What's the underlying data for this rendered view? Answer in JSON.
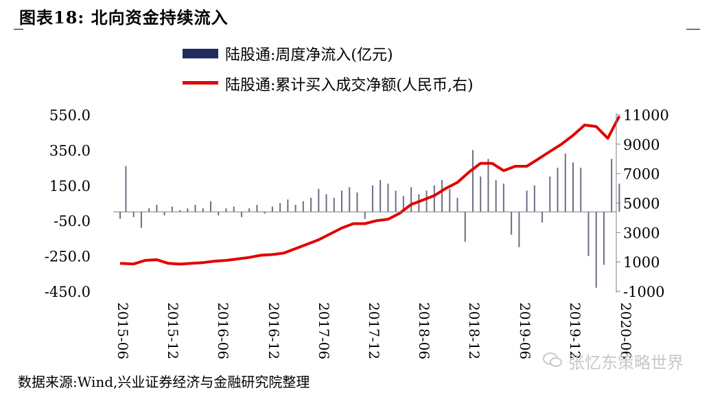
{
  "header": {
    "title": "图表18:  北向资金持续流入"
  },
  "legend": {
    "bar_label": "陆股通:周度净流入(亿元)",
    "line_label": "陆股通:累计买入成交净额(人民币,右)"
  },
  "footer": {
    "source": "数据来源:Wind,兴业证券经济与金融研究院整理",
    "watermark": "张忆东策略世界"
  },
  "colors": {
    "bar": "#6b6e84",
    "line": "#e10000",
    "legend_bar": "#1f2d5c",
    "axis": "#808080"
  },
  "icons": {
    "watermark": "wechat-icon"
  },
  "chart_data": {
    "type": "bar",
    "title": "",
    "x_tick_labels": [
      "2015-06",
      "2015-12",
      "2016-06",
      "2016-12",
      "2017-06",
      "2017-12",
      "2018-06",
      "2018-12",
      "2019-06",
      "2019-12",
      "2020-06"
    ],
    "y_left": {
      "ticks": [
        550,
        350,
        150,
        -50,
        -250,
        -450
      ],
      "tick_labels": [
        "550.0",
        "350.0",
        "150.0",
        "-50.0",
        "-250.0",
        "-450.0"
      ],
      "range": [
        -450,
        550
      ]
    },
    "y_right": {
      "ticks": [
        11000,
        9000,
        7000,
        5000,
        3000,
        1000,
        -1000
      ],
      "tick_labels": [
        "11000",
        "9000",
        "7000",
        "5000",
        "3000",
        "1000",
        "-1000"
      ],
      "range": [
        -1000,
        11000
      ]
    },
    "series": [
      {
        "name": "陆股通:周度净流入(亿元)",
        "type": "bar",
        "axis": "left",
        "x": [
          "2015-06-26",
          "2015-07-17",
          "2015-08-14",
          "2015-09-11",
          "2015-10-09",
          "2015-11-06",
          "2015-12-04",
          "2016-01-01",
          "2016-01-29",
          "2016-02-26",
          "2016-03-25",
          "2016-04-22",
          "2016-05-20",
          "2016-06-17",
          "2016-07-15",
          "2016-08-12",
          "2016-09-09",
          "2016-10-07",
          "2016-11-04",
          "2016-12-02",
          "2016-12-30",
          "2017-01-27",
          "2017-02-24",
          "2017-03-24",
          "2017-04-21",
          "2017-05-19",
          "2017-06-16",
          "2017-07-14",
          "2017-08-11",
          "2017-09-08",
          "2017-10-06",
          "2017-11-03",
          "2017-12-01",
          "2017-12-29",
          "2018-01-26",
          "2018-02-23",
          "2018-03-23",
          "2018-04-20",
          "2018-05-18",
          "2018-06-15",
          "2018-07-13",
          "2018-08-10",
          "2018-09-07",
          "2018-10-05",
          "2018-11-02",
          "2018-11-30",
          "2018-12-28",
          "2019-01-25",
          "2019-02-22",
          "2019-03-22",
          "2019-04-19",
          "2019-05-17",
          "2019-06-14",
          "2019-07-12",
          "2019-08-09",
          "2019-09-06",
          "2019-10-04",
          "2019-11-01",
          "2019-11-29",
          "2019-12-27",
          "2020-01-24",
          "2020-02-21",
          "2020-03-20",
          "2020-04-17",
          "2020-05-15",
          "2020-06-12"
        ],
        "values": [
          -40,
          260,
          -30,
          -90,
          20,
          40,
          -20,
          30,
          10,
          20,
          40,
          20,
          60,
          -20,
          20,
          30,
          -30,
          20,
          40,
          -10,
          30,
          50,
          70,
          40,
          60,
          80,
          130,
          100,
          80,
          120,
          140,
          110,
          -40,
          150,
          180,
          160,
          120,
          90,
          140,
          100,
          120,
          150,
          180,
          130,
          80,
          -170,
          350,
          200,
          300,
          180,
          160,
          -130,
          -200,
          120,
          150,
          -60,
          200,
          250,
          330,
          280,
          250,
          -250,
          -430,
          -300,
          300,
          160
        ]
      },
      {
        "name": "陆股通:累计买入成交净额(人民币,右)",
        "type": "line",
        "axis": "right",
        "x": [
          "2015-06-26",
          "2015-08-14",
          "2015-09-25",
          "2015-11-06",
          "2015-12-18",
          "2016-01-29",
          "2016-03-11",
          "2016-04-22",
          "2016-06-03",
          "2016-07-15",
          "2016-08-26",
          "2016-10-07",
          "2016-11-18",
          "2016-12-30",
          "2017-02-10",
          "2017-03-24",
          "2017-05-05",
          "2017-06-16",
          "2017-07-28",
          "2017-09-08",
          "2017-10-20",
          "2017-12-01",
          "2018-01-12",
          "2018-02-23",
          "2018-04-06",
          "2018-05-18",
          "2018-06-29",
          "2018-08-10",
          "2018-09-21",
          "2018-11-02",
          "2018-12-14",
          "2019-01-25",
          "2019-03-08",
          "2019-04-19",
          "2019-05-31",
          "2019-07-12",
          "2019-08-23",
          "2019-10-04",
          "2019-11-15",
          "2019-12-27",
          "2020-02-07",
          "2020-03-20",
          "2020-05-01",
          "2020-06-12"
        ],
        "values": [
          900,
          860,
          1100,
          1150,
          900,
          850,
          900,
          950,
          1050,
          1100,
          1200,
          1300,
          1450,
          1500,
          1600,
          1900,
          2200,
          2500,
          2900,
          3300,
          3600,
          3600,
          3800,
          3900,
          4300,
          4900,
          5200,
          5500,
          6000,
          6400,
          7100,
          7700,
          7700,
          7200,
          7500,
          7500,
          8000,
          8500,
          9000,
          9600,
          10300,
          10200,
          9400,
          10900
        ]
      }
    ]
  }
}
